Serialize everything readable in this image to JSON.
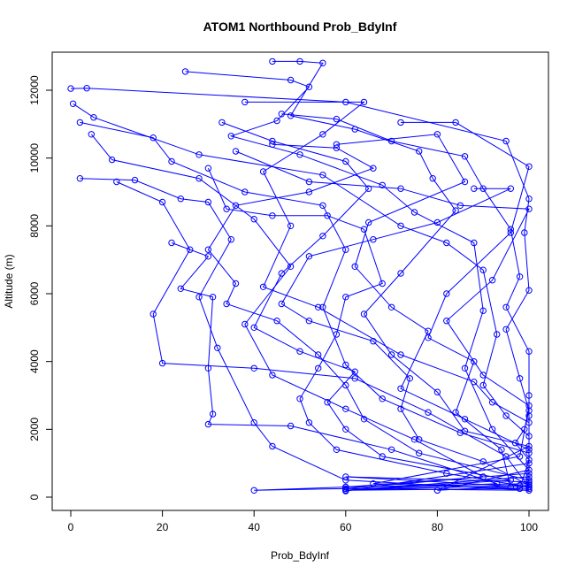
{
  "chart_data": {
    "type": "line",
    "title": "ATOM1 Northbound Prob_BdyInf",
    "xlabel": "Prob_BdyInf",
    "ylabel": "Altitude (m)",
    "xlim": [
      0,
      100
    ],
    "ylim": [
      0,
      12000
    ],
    "xticks": [
      0,
      20,
      40,
      60,
      80,
      100
    ],
    "yticks": [
      0,
      2000,
      4000,
      6000,
      8000,
      10000,
      12000
    ],
    "xtick_labels": [
      "0",
      "20",
      "40",
      "60",
      "80",
      "100"
    ],
    "ytick_labels": [
      "0",
      "2000",
      "4000",
      "6000",
      "8000",
      "10000",
      "12000"
    ],
    "grid": false,
    "legend": "none",
    "series_color": "#0000ff",
    "series": [
      {
        "values": [
          [
            0,
            12050
          ],
          [
            3.5,
            12060
          ],
          [
            60,
            11650
          ],
          [
            95,
            10500
          ],
          [
            100,
            8800
          ],
          [
            99,
            7800
          ],
          [
            100,
            6100
          ],
          [
            95,
            4950
          ],
          [
            98,
            3500
          ],
          [
            100,
            2550
          ],
          [
            99,
            2000
          ],
          [
            97,
            1600
          ],
          [
            100,
            1100
          ],
          [
            98,
            250
          ],
          [
            60,
            200
          ]
        ]
      },
      {
        "values": [
          [
            0.5,
            11600
          ],
          [
            5,
            11200
          ],
          [
            28,
            10100
          ],
          [
            55,
            9500
          ],
          [
            72,
            8000
          ],
          [
            82,
            7500
          ],
          [
            90,
            6700
          ],
          [
            93,
            4800
          ],
          [
            90,
            3300
          ],
          [
            95,
            2400
          ],
          [
            100,
            1800
          ],
          [
            100,
            700
          ],
          [
            60,
            300
          ],
          [
            40,
            200
          ],
          [
            60,
            250
          ]
        ]
      },
      {
        "values": [
          [
            25,
            12550
          ],
          [
            48,
            12300
          ],
          [
            52,
            12100
          ],
          [
            45,
            11100
          ],
          [
            35,
            10650
          ],
          [
            50,
            10100
          ],
          [
            68,
            9200
          ],
          [
            75,
            8400
          ],
          [
            88,
            7500
          ],
          [
            90,
            5500
          ],
          [
            86,
            3800
          ],
          [
            92,
            2000
          ],
          [
            100,
            800
          ],
          [
            80,
            200
          ],
          [
            100,
            350
          ]
        ]
      },
      {
        "values": [
          [
            2,
            11050
          ],
          [
            18,
            10600
          ],
          [
            22,
            9900
          ],
          [
            38,
            9000
          ],
          [
            55,
            8600
          ],
          [
            60,
            7300
          ],
          [
            55,
            5600
          ],
          [
            60,
            3900
          ],
          [
            68,
            2900
          ],
          [
            85,
            1900
          ],
          [
            100,
            1300
          ],
          [
            100,
            300
          ],
          [
            60,
            600
          ],
          [
            100,
            450
          ]
        ]
      },
      {
        "values": [
          [
            4.5,
            10700
          ],
          [
            9,
            9950
          ],
          [
            28,
            9400
          ],
          [
            40,
            8200
          ],
          [
            48,
            6800
          ],
          [
            38,
            5100
          ],
          [
            44,
            3600
          ],
          [
            60,
            2600
          ],
          [
            75,
            1700
          ],
          [
            90,
            600
          ],
          [
            60,
            250
          ],
          [
            100,
            200
          ]
        ]
      },
      {
        "values": [
          [
            2,
            9400
          ],
          [
            14,
            9350
          ],
          [
            24,
            8800
          ],
          [
            30,
            8700
          ],
          [
            35,
            7600
          ],
          [
            28,
            5900
          ],
          [
            32,
            4400
          ],
          [
            40,
            2200
          ],
          [
            44,
            1500
          ],
          [
            60,
            500
          ],
          [
            100,
            200
          ]
        ]
      },
      {
        "values": [
          [
            10,
            9300
          ],
          [
            20,
            8700
          ],
          [
            26,
            7300
          ],
          [
            18,
            5400
          ],
          [
            20,
            3950
          ],
          [
            40,
            3800
          ],
          [
            62,
            3500
          ],
          [
            78,
            2500
          ],
          [
            95,
            1200
          ],
          [
            100,
            300
          ]
        ]
      },
      {
        "values": [
          [
            22,
            7500
          ],
          [
            30,
            7100
          ],
          [
            24,
            6150
          ],
          [
            31,
            5900
          ],
          [
            30,
            3800
          ],
          [
            31,
            2450
          ],
          [
            30,
            2150
          ],
          [
            48,
            2100
          ],
          [
            70,
            1400
          ],
          [
            93,
            400
          ],
          [
            60,
            200
          ]
        ]
      },
      {
        "values": [
          [
            44,
            12850
          ],
          [
            50,
            12850
          ],
          [
            55,
            12800
          ],
          [
            48,
            11250
          ],
          [
            62,
            10850
          ],
          [
            76,
            10200
          ],
          [
            79,
            9400
          ],
          [
            84,
            8450
          ],
          [
            72,
            6600
          ],
          [
            64,
            5400
          ],
          [
            70,
            4200
          ],
          [
            80,
            3100
          ],
          [
            86,
            1950
          ],
          [
            100,
            1500
          ],
          [
            80,
            200
          ]
        ]
      },
      {
        "values": [
          [
            38,
            11650
          ],
          [
            64,
            11650
          ],
          [
            55,
            10700
          ],
          [
            42,
            9600
          ],
          [
            48,
            8000
          ],
          [
            42,
            6200
          ],
          [
            54,
            5600
          ],
          [
            72,
            4200
          ],
          [
            88,
            3400
          ],
          [
            92,
            2800
          ],
          [
            100,
            2200
          ],
          [
            100,
            1000
          ],
          [
            60,
            180
          ]
        ]
      },
      {
        "values": [
          [
            46,
            11300
          ],
          [
            58,
            11150
          ],
          [
            70,
            10500
          ],
          [
            86,
            10050
          ],
          [
            90,
            9100
          ],
          [
            96,
            7900
          ],
          [
            98,
            6500
          ],
          [
            95,
            5600
          ],
          [
            100,
            4300
          ],
          [
            100,
            3000
          ],
          [
            100,
            2400
          ],
          [
            100,
            600
          ],
          [
            60,
            200
          ],
          [
            98,
            350
          ]
        ]
      },
      {
        "values": [
          [
            72,
            11050
          ],
          [
            84,
            11050
          ],
          [
            100,
            9750
          ],
          [
            96,
            7800
          ],
          [
            82,
            6000
          ],
          [
            78,
            4700
          ],
          [
            88,
            4000
          ],
          [
            84,
            2500
          ],
          [
            94,
            1400
          ],
          [
            96,
            300
          ]
        ]
      },
      {
        "values": [
          [
            58,
            10400
          ],
          [
            80,
            10700
          ],
          [
            86,
            9300
          ],
          [
            65,
            8100
          ],
          [
            62,
            6800
          ],
          [
            70,
            5600
          ],
          [
            78,
            4900
          ],
          [
            72,
            3200
          ],
          [
            86,
            2300
          ],
          [
            100,
            1400
          ],
          [
            100,
            400
          ],
          [
            60,
            300
          ]
        ]
      },
      {
        "values": [
          [
            33,
            11050
          ],
          [
            44,
            10500
          ],
          [
            60,
            9900
          ],
          [
            65,
            9100
          ],
          [
            55,
            7700
          ],
          [
            46,
            6600
          ],
          [
            40,
            5000
          ],
          [
            50,
            4300
          ],
          [
            62,
            3700
          ],
          [
            56,
            2800
          ],
          [
            60,
            2000
          ],
          [
            68,
            1200
          ],
          [
            96,
            500
          ],
          [
            60,
            200
          ]
        ]
      },
      {
        "values": [
          [
            36,
            10200
          ],
          [
            52,
            9300
          ],
          [
            72,
            9100
          ],
          [
            85,
            8600
          ],
          [
            100,
            8500
          ],
          [
            92,
            6400
          ],
          [
            82,
            5200
          ],
          [
            90,
            3600
          ],
          [
            100,
            2700
          ],
          [
            98,
            1200
          ],
          [
            66,
            400
          ],
          [
            100,
            250
          ]
        ]
      },
      {
        "values": [
          [
            88,
            9100
          ],
          [
            96,
            9100
          ],
          [
            80,
            8100
          ],
          [
            66,
            7600
          ],
          [
            52,
            7100
          ],
          [
            46,
            5700
          ],
          [
            52,
            5200
          ],
          [
            66,
            4600
          ],
          [
            74,
            3500
          ],
          [
            72,
            2600
          ],
          [
            76,
            1700
          ],
          [
            90,
            1050
          ],
          [
            100,
            350
          ]
        ]
      },
      {
        "values": [
          [
            30,
            9700
          ],
          [
            34,
            8500
          ],
          [
            44,
            8300
          ],
          [
            56,
            8300
          ],
          [
            64,
            7900
          ],
          [
            68,
            6300
          ],
          [
            60,
            5900
          ],
          [
            58,
            4800
          ],
          [
            54,
            3800
          ],
          [
            50,
            2900
          ],
          [
            52,
            2200
          ],
          [
            58,
            1400
          ],
          [
            82,
            700
          ],
          [
            100,
            300
          ]
        ]
      },
      {
        "values": [
          [
            44,
            10400
          ],
          [
            58,
            10300
          ],
          [
            66,
            9700
          ],
          [
            52,
            9000
          ],
          [
            36,
            8600
          ],
          [
            30,
            7300
          ],
          [
            36,
            6300
          ],
          [
            34,
            5700
          ],
          [
            45,
            5200
          ],
          [
            54,
            4200
          ],
          [
            60,
            3300
          ],
          [
            64,
            2300
          ],
          [
            76,
            1300
          ],
          [
            100,
            500
          ]
        ]
      }
    ]
  }
}
